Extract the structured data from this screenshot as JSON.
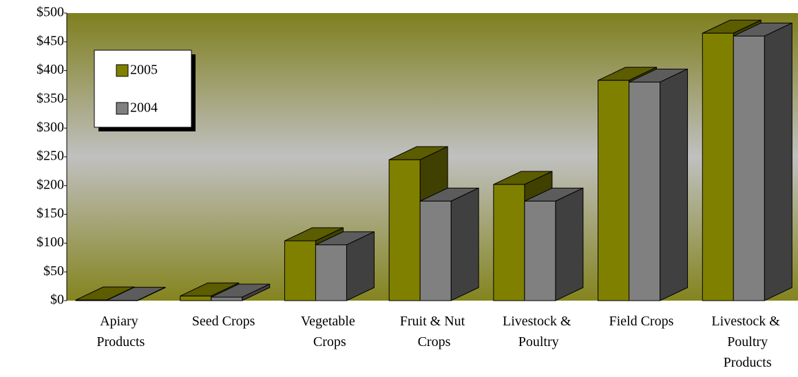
{
  "chart_data": {
    "type": "bar3d",
    "categories": [
      "Apiary Products",
      "Seed Crops",
      "Vegetable Crops",
      "Fruit & Nut Crops",
      "Livestock & Poultry",
      "Field Crops",
      "Livestock & Poultry Products"
    ],
    "series": [
      {
        "name": "2005",
        "color": "#808000",
        "values": [
          1,
          8,
          104,
          245,
          202,
          383,
          465
        ]
      },
      {
        "name": "2004",
        "color": "#808080",
        "values": [
          0.5,
          6,
          97,
          173,
          173,
          380,
          460
        ]
      }
    ],
    "ylim": [
      0,
      500
    ],
    "yticks": [
      {
        "value": 0,
        "label": "$0"
      },
      {
        "value": 50,
        "label": "$50"
      },
      {
        "value": 100,
        "label": "$100"
      },
      {
        "value": 150,
        "label": "$150"
      },
      {
        "value": 200,
        "label": "$200"
      },
      {
        "value": 250,
        "label": "$250"
      },
      {
        "value": 300,
        "label": "$300"
      },
      {
        "value": 350,
        "label": "$350"
      },
      {
        "value": 400,
        "label": "$400"
      },
      {
        "value": 450,
        "label": "$450"
      },
      {
        "value": 500,
        "label": "$500"
      }
    ],
    "legend": "upper left"
  }
}
